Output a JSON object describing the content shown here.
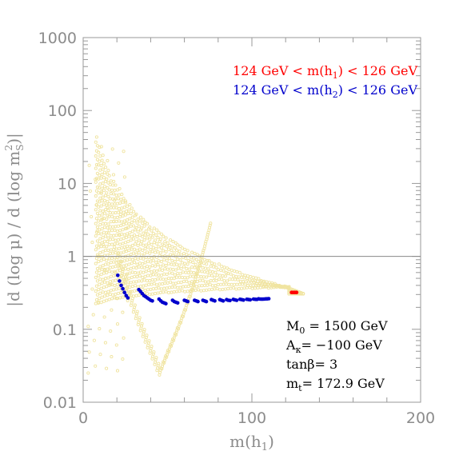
{
  "chart_data": {
    "type": "scatter",
    "title": "",
    "xlabel": "m(h",
    "xlabel_sub": "1",
    "xlabel_suffix": ")",
    "ylabel_prefix": "|d (log μ) / d (log m",
    "ylabel_sub": "S",
    "ylabel_sup": "2",
    "ylabel_suffix": ")|",
    "xlim": [
      0,
      200
    ],
    "ylim": [
      0.01,
      1000
    ],
    "yscale": "log",
    "grid": false,
    "x_ticks": [
      0,
      100,
      200
    ],
    "x_tick_labels": [
      "0",
      "100",
      "200"
    ],
    "y_ticks": [
      0.01,
      0.1,
      1,
      10,
      100,
      1000
    ],
    "y_tick_labels": [
      "0.01",
      "0.1",
      "1",
      "10",
      "100",
      "1000"
    ],
    "reference_line": 1,
    "legend_position": "top-right",
    "legend": [
      {
        "text_before": "124 GeV < m(h",
        "sub": "1",
        "text_after": ") < 126 GeV",
        "color": "#ff0000"
      },
      {
        "text_before": "124 GeV < m(h",
        "sub": "2",
        "text_after": ") < 126 GeV",
        "color": "#0000cc"
      }
    ],
    "annotation_lines": [
      {
        "main": "M",
        "sub": "0",
        "rest": " = 1500 GeV"
      },
      {
        "main": "A",
        "sub": "κ",
        "rest": "= −100 GeV"
      },
      {
        "main": "tanβ",
        "sub": "",
        "rest": "= 3"
      },
      {
        "main": "m",
        "sub": "t",
        "rest": "= 172.9 GeV"
      }
    ],
    "background_color": "#f0e4a0",
    "series": [
      {
        "color": "#0000cc",
        "points": [
          [
            20.5,
            0.55
          ],
          [
            21.5,
            0.46
          ],
          [
            22.5,
            0.4
          ],
          [
            23.5,
            0.36
          ],
          [
            24.5,
            0.32
          ],
          [
            25.5,
            0.29
          ],
          [
            26.5,
            0.27
          ],
          [
            33,
            0.35
          ],
          [
            34,
            0.33
          ],
          [
            35,
            0.31
          ],
          [
            36,
            0.29
          ],
          [
            37,
            0.28
          ],
          [
            38,
            0.27
          ],
          [
            39,
            0.26
          ],
          [
            40,
            0.25
          ],
          [
            41,
            0.245
          ],
          [
            45,
            0.26
          ],
          [
            46,
            0.245
          ],
          [
            47,
            0.235
          ],
          [
            48,
            0.23
          ],
          [
            49,
            0.225
          ],
          [
            53,
            0.25
          ],
          [
            54,
            0.24
          ],
          [
            55,
            0.235
          ],
          [
            56,
            0.23
          ],
          [
            60,
            0.25
          ],
          [
            61,
            0.245
          ],
          [
            62,
            0.24
          ],
          [
            66,
            0.25
          ],
          [
            67,
            0.245
          ],
          [
            68,
            0.24
          ],
          [
            71,
            0.25
          ],
          [
            72,
            0.245
          ],
          [
            73,
            0.24
          ],
          [
            76,
            0.255
          ],
          [
            77,
            0.25
          ],
          [
            78,
            0.245
          ],
          [
            81,
            0.255
          ],
          [
            82,
            0.25
          ],
          [
            83,
            0.245
          ],
          [
            85,
            0.255
          ],
          [
            86,
            0.25
          ],
          [
            87,
            0.248
          ],
          [
            89,
            0.257
          ],
          [
            90,
            0.253
          ],
          [
            91,
            0.25
          ],
          [
            93,
            0.258
          ],
          [
            94,
            0.255
          ],
          [
            95,
            0.252
          ],
          [
            97,
            0.258
          ],
          [
            98,
            0.256
          ],
          [
            99,
            0.254
          ],
          [
            101,
            0.26
          ],
          [
            102,
            0.258
          ],
          [
            103,
            0.257
          ],
          [
            104,
            0.262
          ],
          [
            105,
            0.26
          ],
          [
            106,
            0.259
          ],
          [
            107,
            0.26
          ],
          [
            108,
            0.261
          ],
          [
            109,
            0.262
          ],
          [
            110,
            0.263
          ]
        ]
      },
      {
        "color": "#ff0000",
        "points": [
          [
            123.5,
            0.32
          ],
          [
            124.5,
            0.32
          ],
          [
            125.5,
            0.32
          ],
          [
            126.5,
            0.32
          ]
        ]
      }
    ]
  }
}
